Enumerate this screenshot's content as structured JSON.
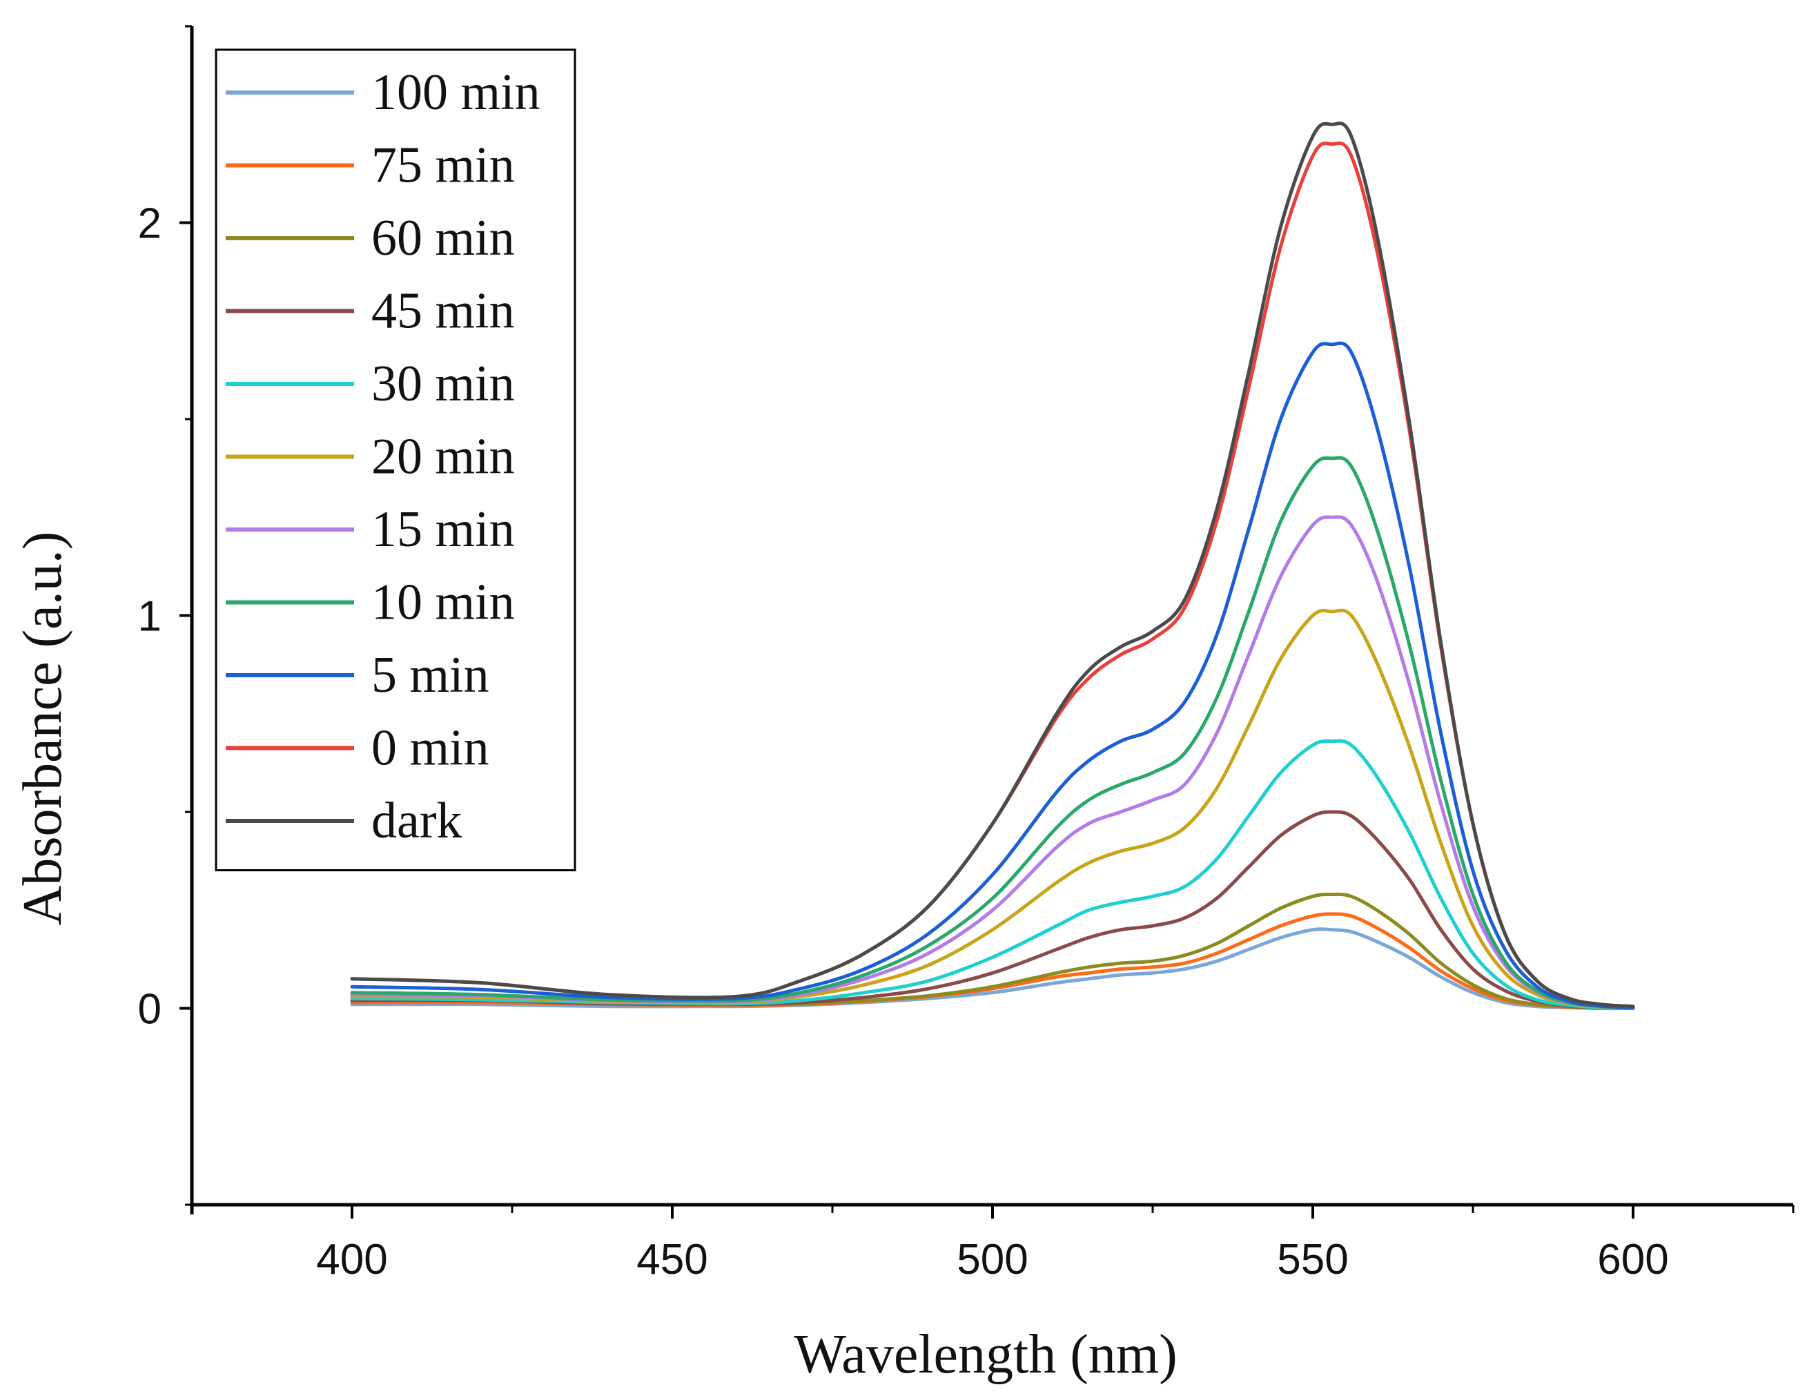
{
  "chart_data": {
    "type": "line",
    "title": "",
    "xlabel": "Wavelength (nm)",
    "ylabel": "Absorbance (a.u.)",
    "xlim": [
      375,
      625
    ],
    "ylim": [
      -0.5,
      2.5
    ],
    "xticks": [
      400,
      450,
      500,
      550,
      600
    ],
    "xtick_labels": [
      "400",
      "450",
      "500",
      "550",
      "600"
    ],
    "yticks": [
      0,
      1,
      2
    ],
    "ytick_labels": [
      "0",
      "1",
      "2"
    ],
    "legend_position": "top-left",
    "x": [
      400,
      420,
      440,
      460,
      470,
      480,
      490,
      500,
      510,
      515,
      520,
      525,
      530,
      535,
      540,
      545,
      550,
      553,
      556,
      560,
      565,
      570,
      575,
      580,
      585,
      590,
      595,
      600
    ],
    "series": [
      {
        "name": "100 min",
        "color": "#7aa7d9",
        "values": [
          0.01,
          0.01,
          0.005,
          0.005,
          0.008,
          0.015,
          0.025,
          0.04,
          0.065,
          0.075,
          0.085,
          0.09,
          0.1,
          0.12,
          0.15,
          0.18,
          0.2,
          0.2,
          0.195,
          0.17,
          0.13,
          0.08,
          0.04,
          0.015,
          0.005,
          0.002,
          0.0,
          0.0
        ]
      },
      {
        "name": "75 min",
        "color": "#ff6a1a",
        "values": [
          0.015,
          0.015,
          0.01,
          0.008,
          0.01,
          0.018,
          0.03,
          0.05,
          0.08,
          0.09,
          0.1,
          0.105,
          0.115,
          0.14,
          0.175,
          0.21,
          0.235,
          0.24,
          0.235,
          0.205,
          0.155,
          0.095,
          0.05,
          0.02,
          0.008,
          0.003,
          0.001,
          0.0
        ]
      },
      {
        "name": "60 min",
        "color": "#8b8b1f",
        "values": [
          0.02,
          0.02,
          0.012,
          0.01,
          0.012,
          0.02,
          0.032,
          0.055,
          0.09,
          0.105,
          0.115,
          0.12,
          0.135,
          0.165,
          0.21,
          0.255,
          0.285,
          0.29,
          0.285,
          0.25,
          0.19,
          0.115,
          0.06,
          0.025,
          0.01,
          0.004,
          0.001,
          0.0
        ]
      },
      {
        "name": "45 min",
        "color": "#8b4a4a",
        "values": [
          0.02,
          0.02,
          0.012,
          0.01,
          0.015,
          0.028,
          0.05,
          0.09,
          0.15,
          0.18,
          0.2,
          0.21,
          0.23,
          0.28,
          0.36,
          0.44,
          0.49,
          0.5,
          0.49,
          0.43,
          0.33,
          0.2,
          0.1,
          0.045,
          0.018,
          0.006,
          0.002,
          0.0
        ]
      },
      {
        "name": "30 min",
        "color": "#1fcfcf",
        "values": [
          0.025,
          0.022,
          0.015,
          0.012,
          0.02,
          0.04,
          0.07,
          0.13,
          0.21,
          0.25,
          0.27,
          0.285,
          0.31,
          0.38,
          0.49,
          0.6,
          0.67,
          0.68,
          0.67,
          0.59,
          0.45,
          0.28,
          0.14,
          0.06,
          0.022,
          0.008,
          0.002,
          0.0
        ]
      },
      {
        "name": "20 min",
        "color": "#c9a41a",
        "values": [
          0.03,
          0.028,
          0.018,
          0.015,
          0.03,
          0.06,
          0.11,
          0.2,
          0.32,
          0.37,
          0.4,
          0.42,
          0.46,
          0.56,
          0.72,
          0.89,
          1.0,
          1.01,
          1.0,
          0.88,
          0.67,
          0.42,
          0.21,
          0.09,
          0.035,
          0.012,
          0.004,
          0.0
        ]
      },
      {
        "name": "15 min",
        "color": "#b47ae6",
        "values": [
          0.035,
          0.032,
          0.02,
          0.018,
          0.035,
          0.075,
          0.14,
          0.25,
          0.41,
          0.47,
          0.5,
          0.53,
          0.57,
          0.7,
          0.9,
          1.1,
          1.23,
          1.25,
          1.23,
          1.09,
          0.83,
          0.52,
          0.26,
          0.11,
          0.042,
          0.014,
          0.005,
          0.0
        ]
      },
      {
        "name": "10 min",
        "color": "#2aa86a",
        "values": [
          0.04,
          0.035,
          0.022,
          0.02,
          0.04,
          0.085,
          0.16,
          0.28,
          0.46,
          0.53,
          0.57,
          0.6,
          0.65,
          0.79,
          1.01,
          1.24,
          1.38,
          1.4,
          1.38,
          1.22,
          0.93,
          0.58,
          0.29,
          0.12,
          0.045,
          0.015,
          0.005,
          0.0
        ]
      },
      {
        "name": "5 min",
        "color": "#1a5fd6",
        "values": [
          0.055,
          0.048,
          0.028,
          0.025,
          0.05,
          0.1,
          0.19,
          0.34,
          0.55,
          0.63,
          0.68,
          0.71,
          0.78,
          0.95,
          1.22,
          1.5,
          1.67,
          1.69,
          1.67,
          1.48,
          1.13,
          0.7,
          0.35,
          0.15,
          0.055,
          0.018,
          0.006,
          0.002
        ]
      },
      {
        "name": "0 min",
        "color": "#e8403a",
        "values": [
          0.075,
          0.065,
          0.035,
          0.03,
          0.07,
          0.14,
          0.26,
          0.47,
          0.74,
          0.84,
          0.9,
          0.94,
          1.02,
          1.24,
          1.58,
          1.94,
          2.17,
          2.2,
          2.17,
          1.93,
          1.48,
          0.92,
          0.47,
          0.19,
          0.07,
          0.025,
          0.01,
          0.005
        ]
      },
      {
        "name": "dark",
        "color": "#4a4a4a",
        "values": [
          0.075,
          0.065,
          0.035,
          0.03,
          0.07,
          0.14,
          0.26,
          0.47,
          0.75,
          0.86,
          0.92,
          0.96,
          1.04,
          1.27,
          1.62,
          1.99,
          2.22,
          2.25,
          2.22,
          1.97,
          1.5,
          0.93,
          0.47,
          0.19,
          0.07,
          0.025,
          0.01,
          0.005
        ]
      }
    ]
  }
}
